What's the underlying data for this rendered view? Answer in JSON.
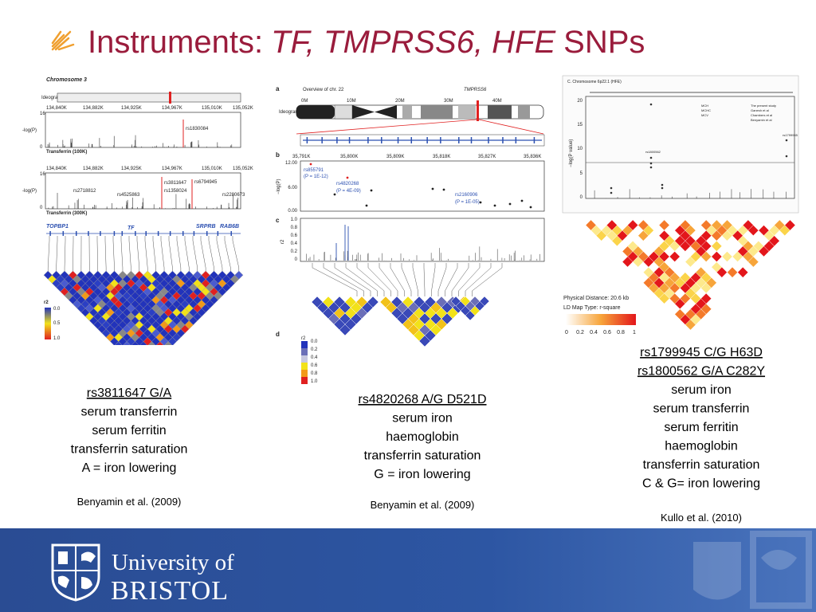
{
  "title": {
    "prefix": "Instruments:",
    "genes": "TF, TMPRSS6, HFE",
    "suffix": "SNPs"
  },
  "figures": {
    "tf": {
      "chromosome": "Chromosome 3",
      "ideogram": "Ideogram",
      "ylabel": "-log(P)",
      "positions": [
        "134,840K",
        "134,882K",
        "134,925K",
        "134,967K",
        "135,010K",
        "135,052K"
      ],
      "ymax": "16",
      "ymin": "0",
      "plot1_title": "Transferrin (100K)",
      "plot2_title": "Transferrin (300K)",
      "plot1_snps": [
        "rs1830084"
      ],
      "plot2_snps": [
        "rs2718812",
        "rs4525863",
        "rs3811647",
        "rs1358024",
        "rs6794945",
        "rs2280673"
      ],
      "genes": [
        "TOPBP1",
        "TF",
        "SRPRB",
        "RAB6B"
      ],
      "legend_title": "r2",
      "legend_ticks": [
        "0.0",
        "0.5",
        "1.0"
      ]
    },
    "tmprss6": {
      "panel_a": "a",
      "overview": "Overview of chr. 22",
      "gene": "TMPRSS6",
      "ideogram": "Ideogram",
      "megabases": [
        "0M",
        "10M",
        "20M",
        "30M",
        "40M"
      ],
      "panel_b": "b",
      "positions": [
        "35,791K",
        "35,800K",
        "35,809K",
        "35,818K",
        "35,827K",
        "35,836K"
      ],
      "yticks": [
        "12.00",
        "6.00",
        "0.00"
      ],
      "ylabel": "−log(P)",
      "snps": [
        {
          "name": "rs855791",
          "p": "(P = 1E-12)"
        },
        {
          "name": "rs4820268",
          "p": "(P = 4E-09)"
        },
        {
          "name": "rs2160906",
          "p": "(P = 1E-05)"
        }
      ],
      "panel_c": "c",
      "r2_ticks": [
        "1.0",
        "0.8",
        "0.6",
        "0.4",
        "0.2",
        "0"
      ],
      "r2_label": "r2",
      "panel_d": "d",
      "legend_title": "r2",
      "legend_ticks": [
        "0.0",
        "0.2",
        "0.4",
        "0.6",
        "0.8",
        "1.0"
      ]
    },
    "hfe": {
      "title": "C. Chromosome 6p22.1 (HFE)",
      "ylabel": "−log(P value)",
      "yticks": [
        "20",
        "15",
        "10",
        "5",
        "0"
      ],
      "traits": [
        "MCH",
        "MCHC",
        "MCV"
      ],
      "studies": [
        "The present study",
        "Ganesh et al",
        "Chambers et al",
        "Benyamin et al"
      ],
      "snps": [
        "rs1800562",
        "rs1799945"
      ],
      "distance": "Physical Distance: 20.6 kb",
      "map_type": "LD Map Type: r-square",
      "legend_ticks": [
        "0",
        "0.2",
        "0.4",
        "0.6",
        "0.8",
        "1"
      ]
    }
  },
  "panels": [
    {
      "snps": [
        "rs3811647 G/A"
      ],
      "traits": [
        "serum transferrin",
        "serum ferritin",
        "transferrin saturation"
      ],
      "direction": "A = iron lowering",
      "citation": "Benyamin et al. (2009)"
    },
    {
      "snps": [
        "rs4820268 A/G D521D"
      ],
      "traits": [
        "serum iron",
        "haemoglobin",
        "transferrin saturation"
      ],
      "direction": "G = iron lowering",
      "citation": "Benyamin et al. (2009)"
    },
    {
      "snps": [
        "rs1799945 C/G H63D",
        "rs1800562 G/A C282Y "
      ],
      "traits": [
        "serum iron",
        "serum transferrin",
        "serum ferritin",
        "haemoglobin",
        "transferrin saturation"
      ],
      "direction": "C & G= iron lowering",
      "citation": "Kullo et al. (2010)"
    }
  ],
  "footer": {
    "line1": "University of",
    "line2": "BRISTOL"
  }
}
